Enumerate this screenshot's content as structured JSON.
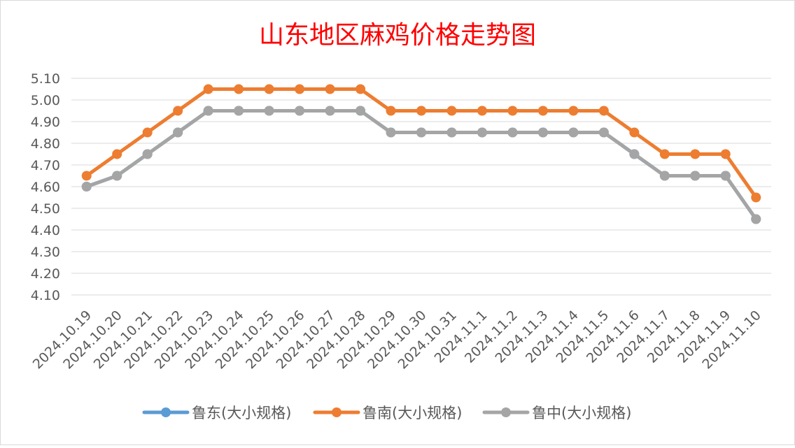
{
  "chart_data": {
    "type": "line",
    "title": "山东地区麻鸡价格走势图",
    "xlabel": "",
    "ylabel": "",
    "categories": [
      "2024.10.19",
      "2024.10.20",
      "2024.10.21",
      "2024.10.22",
      "2024.10.23",
      "2024.10.24",
      "2024.10.25",
      "2024.10.26",
      "2024.10.27",
      "2024.10.28",
      "2024.10.29",
      "2024.10.30",
      "2024.10.31",
      "2024.11.1",
      "2024.11.2",
      "2024.11.3",
      "2024.11.4",
      "2024.11.5",
      "2024.11.6",
      "2024.11.7",
      "2024.11.8",
      "2024.11.9",
      "2024.11.10"
    ],
    "ylim": [
      4.1,
      5.1
    ],
    "yticks": [
      "4.10",
      "4.20",
      "4.30",
      "4.40",
      "4.50",
      "4.60",
      "4.70",
      "4.80",
      "4.90",
      "5.00",
      "5.10"
    ],
    "grid": true,
    "legend_position": "bottom",
    "series": [
      {
        "name": "鲁东(大小规格)",
        "color": "#5b9bd5",
        "values": [
          4.6,
          4.65,
          4.75,
          4.85,
          4.95,
          4.95,
          4.95,
          4.95,
          4.95,
          4.95,
          4.85,
          4.85,
          4.85,
          4.85,
          4.85,
          4.85,
          4.85,
          4.85,
          4.75,
          4.65,
          4.65,
          4.65,
          4.45
        ]
      },
      {
        "name": "鲁南(大小规格)",
        "color": "#ed7d31",
        "values": [
          4.65,
          4.75,
          4.85,
          4.95,
          5.05,
          5.05,
          5.05,
          5.05,
          5.05,
          5.05,
          4.95,
          4.95,
          4.95,
          4.95,
          4.95,
          4.95,
          4.95,
          4.95,
          4.85,
          4.75,
          4.75,
          4.75,
          4.55
        ]
      },
      {
        "name": "鲁中(大小规格)",
        "color": "#a5a5a5",
        "values": [
          4.6,
          4.65,
          4.75,
          4.85,
          4.95,
          4.95,
          4.95,
          4.95,
          4.95,
          4.95,
          4.85,
          4.85,
          4.85,
          4.85,
          4.85,
          4.85,
          4.85,
          4.85,
          4.75,
          4.65,
          4.65,
          4.65,
          4.45
        ]
      }
    ],
    "colors": {
      "title": "#ff0000",
      "grid": "#d9d9d9",
      "tick_label": "#595959"
    }
  }
}
